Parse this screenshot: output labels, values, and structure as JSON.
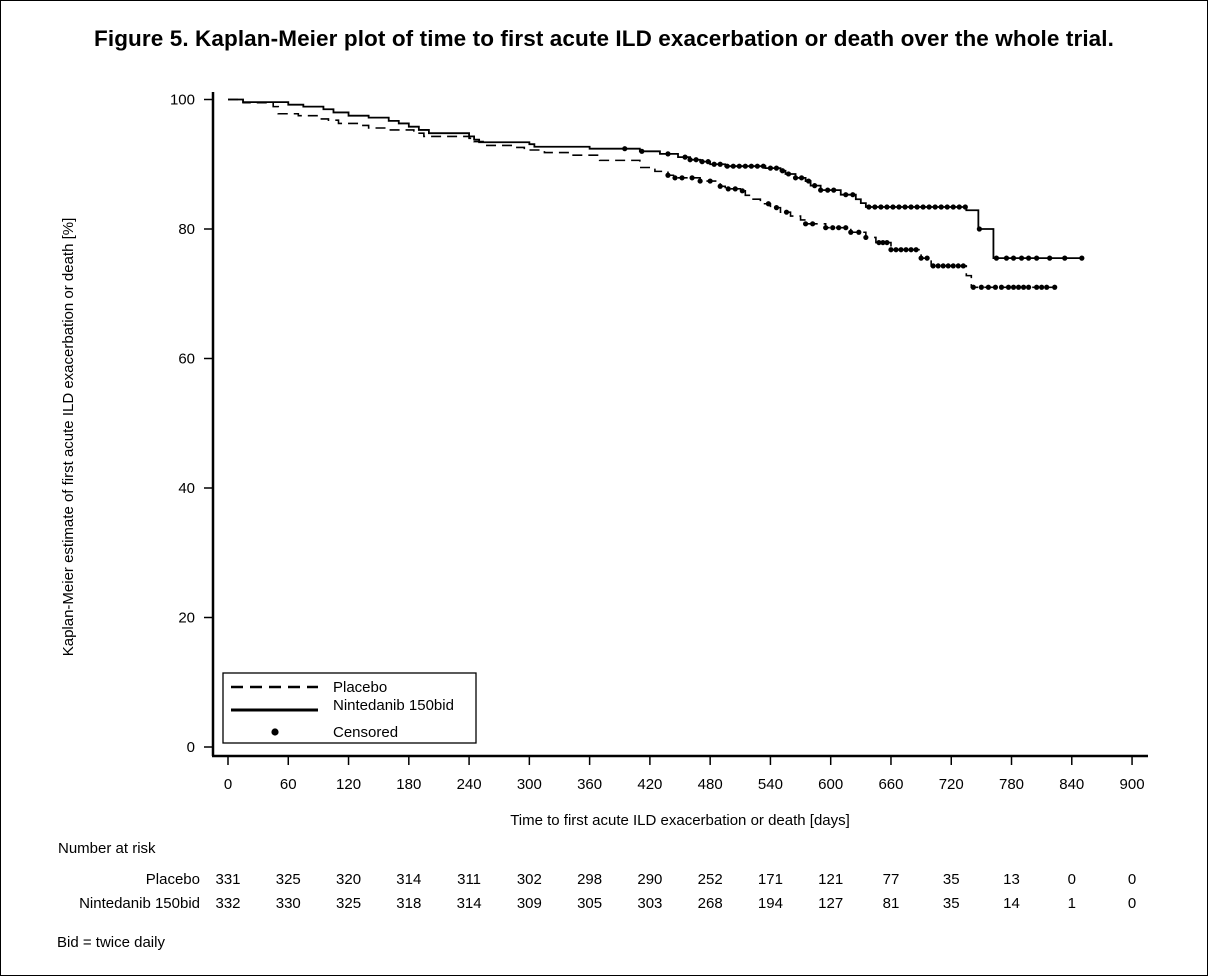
{
  "figure": {
    "title": "Figure 5. Kaplan-Meier plot of time to first acute ILD exacerbation or death over the whole trial.",
    "footnote": "Bid = twice daily"
  },
  "chart_data": {
    "type": "line",
    "subtype": "kaplan-meier",
    "title": "Figure 5. Kaplan-Meier plot of time to first acute ILD exacerbation or death over the whole trial.",
    "xlabel": "Time to first acute ILD exacerbation or death [days]",
    "ylabel": "Kaplan-Meier estimate of first acute ILD exacerbation or death [%]",
    "xlim": [
      0,
      900
    ],
    "ylim": [
      0,
      100
    ],
    "xticks": [
      0,
      60,
      120,
      180,
      240,
      300,
      360,
      420,
      480,
      540,
      600,
      660,
      720,
      780,
      840,
      900
    ],
    "yticks": [
      0,
      20,
      40,
      60,
      80,
      100
    ],
    "grid": false,
    "legend": {
      "position": "bottom-left",
      "entries": [
        {
          "label": "Placebo",
          "style": "dashed"
        },
        {
          "label": "Nintedanib 150bid",
          "style": "solid"
        },
        {
          "label": "Censored",
          "style": "dot"
        }
      ]
    },
    "series": [
      {
        "name": "Placebo",
        "style": "dashed",
        "steps": [
          [
            0,
            100
          ],
          [
            15,
            99.5
          ],
          [
            45,
            98.9
          ],
          [
            50,
            97.8
          ],
          [
            70,
            97.5
          ],
          [
            90,
            97.0
          ],
          [
            100,
            96.8
          ],
          [
            110,
            96.3
          ],
          [
            130,
            96.0
          ],
          [
            140,
            95.6
          ],
          [
            160,
            95.3
          ],
          [
            185,
            94.8
          ],
          [
            195,
            94.3
          ],
          [
            240,
            94.0
          ],
          [
            245,
            93.5
          ],
          [
            255,
            92.9
          ],
          [
            285,
            92.6
          ],
          [
            295,
            92.2
          ],
          [
            315,
            91.8
          ],
          [
            340,
            91.4
          ],
          [
            370,
            90.6
          ],
          [
            410,
            89.5
          ],
          [
            425,
            88.9
          ],
          [
            438,
            88.3
          ],
          [
            445,
            87.9
          ],
          [
            470,
            87.4
          ],
          [
            490,
            86.6
          ],
          [
            495,
            86.2
          ],
          [
            510,
            85.9
          ],
          [
            515,
            85.2
          ],
          [
            520,
            84.6
          ],
          [
            530,
            83.9
          ],
          [
            540,
            83.3
          ],
          [
            550,
            82.6
          ],
          [
            560,
            82.0
          ],
          [
            570,
            81.4
          ],
          [
            575,
            80.8
          ],
          [
            595,
            80.2
          ],
          [
            620,
            79.5
          ],
          [
            635,
            78.7
          ],
          [
            645,
            77.9
          ],
          [
            660,
            76.8
          ],
          [
            690,
            75.5
          ],
          [
            700,
            74.3
          ],
          [
            735,
            72.8
          ],
          [
            740,
            71.0
          ]
        ],
        "end_x": 825,
        "censored_x": [
          438,
          445,
          452,
          462,
          470,
          480,
          490,
          498,
          505,
          512,
          538,
          546,
          556,
          575,
          582,
          595,
          602,
          608,
          615,
          620,
          628,
          635,
          648,
          652,
          656,
          660,
          665,
          670,
          675,
          680,
          685,
          690,
          696,
          702,
          707,
          712,
          717,
          722,
          727,
          732,
          742,
          750,
          757,
          764,
          770,
          777,
          782,
          787,
          792,
          797,
          805,
          810,
          815,
          823
        ]
      },
      {
        "name": "Nintedanib 150bid",
        "style": "solid",
        "steps": [
          [
            0,
            100
          ],
          [
            15,
            99.6
          ],
          [
            60,
            99.2
          ],
          [
            75,
            98.9
          ],
          [
            95,
            98.5
          ],
          [
            105,
            98.0
          ],
          [
            120,
            97.5
          ],
          [
            140,
            97.2
          ],
          [
            160,
            96.7
          ],
          [
            170,
            96.3
          ],
          [
            180,
            95.8
          ],
          [
            190,
            95.3
          ],
          [
            200,
            94.8
          ],
          [
            240,
            94.3
          ],
          [
            245,
            93.8
          ],
          [
            250,
            93.4
          ],
          [
            300,
            93.1
          ],
          [
            305,
            92.7
          ],
          [
            360,
            92.4
          ],
          [
            410,
            92.0
          ],
          [
            430,
            91.6
          ],
          [
            448,
            91.1
          ],
          [
            460,
            90.7
          ],
          [
            470,
            90.4
          ],
          [
            480,
            90.0
          ],
          [
            495,
            89.7
          ],
          [
            535,
            89.4
          ],
          [
            550,
            89.0
          ],
          [
            555,
            88.5
          ],
          [
            565,
            87.9
          ],
          [
            575,
            87.4
          ],
          [
            580,
            86.7
          ],
          [
            590,
            86.0
          ],
          [
            610,
            85.3
          ],
          [
            625,
            84.6
          ],
          [
            630,
            84.0
          ],
          [
            635,
            83.4
          ],
          [
            735,
            82.9
          ],
          [
            747,
            80.0
          ],
          [
            762,
            75.5
          ]
        ],
        "end_x": 850,
        "censored_x": [
          395,
          412,
          438,
          455,
          460,
          466,
          472,
          478,
          484,
          490,
          497,
          503,
          509,
          515,
          521,
          527,
          533,
          540,
          546,
          552,
          558,
          565,
          571,
          578,
          584,
          590,
          597,
          603,
          615,
          622,
          638,
          644,
          650,
          656,
          662,
          668,
          674,
          680,
          686,
          692,
          698,
          704,
          710,
          716,
          722,
          728,
          734,
          748,
          765,
          775,
          782,
          790,
          797,
          805,
          818,
          833,
          850
        ]
      }
    ]
  },
  "risk_table": {
    "heading": "Number at risk",
    "rows": [
      {
        "label": "Placebo",
        "values": [
          "331",
          "325",
          "320",
          "314",
          "311",
          "302",
          "298",
          "290",
          "252",
          "171",
          "121",
          "77",
          "35",
          "13",
          "0",
          "0"
        ]
      },
      {
        "label": "Nintedanib 150bid",
        "values": [
          "332",
          "330",
          "325",
          "318",
          "314",
          "309",
          "305",
          "303",
          "268",
          "194",
          "127",
          "81",
          "35",
          "14",
          "1",
          "0"
        ]
      }
    ]
  }
}
